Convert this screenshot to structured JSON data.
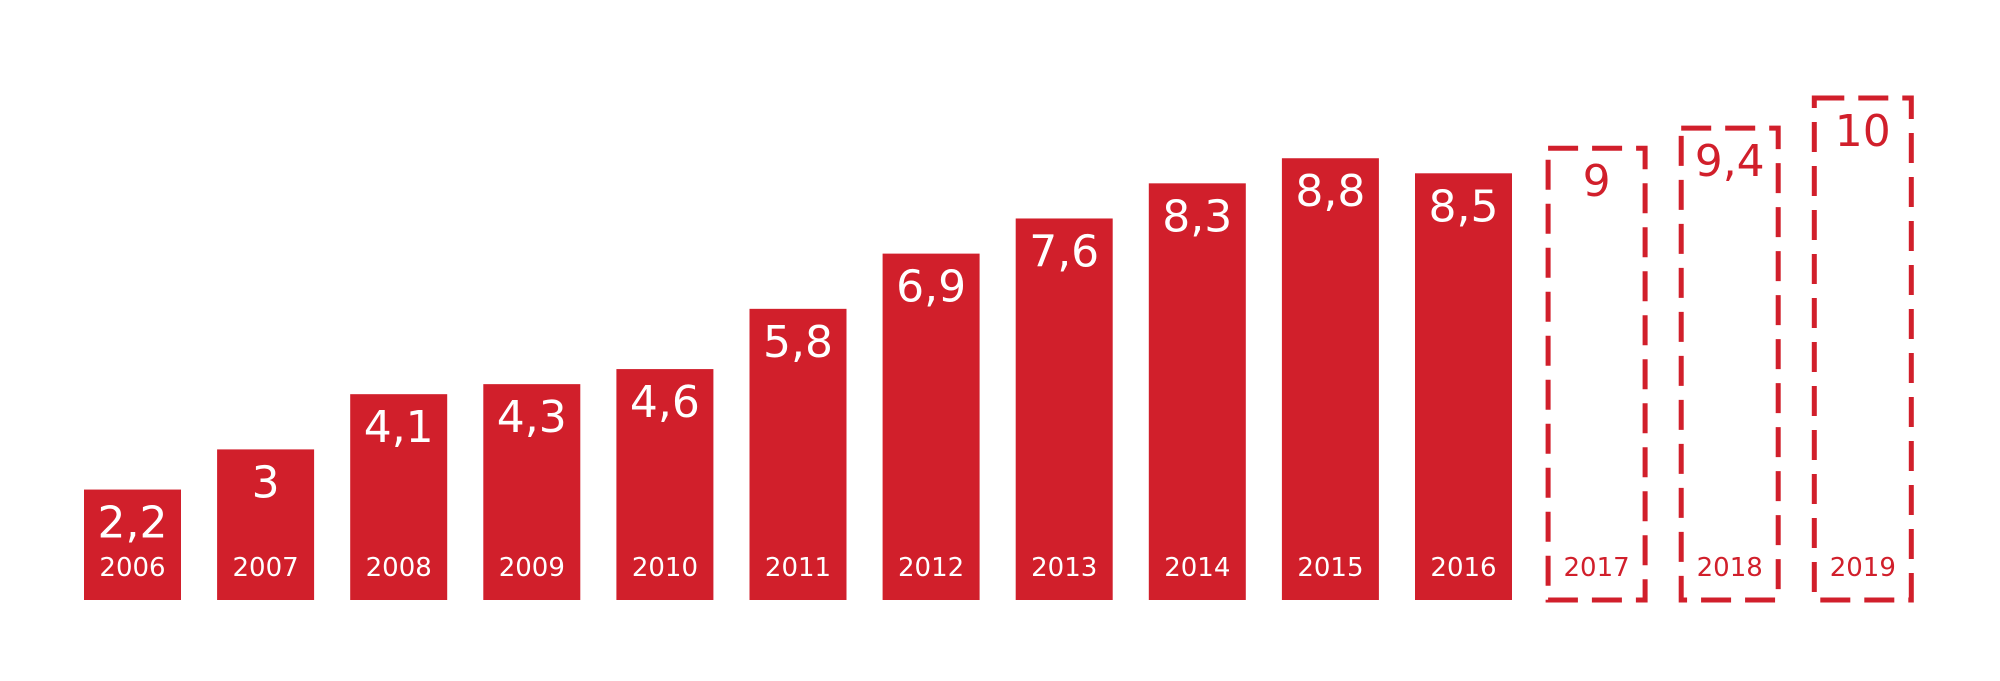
{
  "chart_data": {
    "type": "bar",
    "title": "",
    "xlabel": "",
    "ylabel": "",
    "grid": false,
    "legend": "none",
    "ylim": [
      0,
      10
    ],
    "colors": {
      "bar": "#d11f2b",
      "label_on_bar": "#ffffff"
    },
    "categories": [
      "2006",
      "2007",
      "2008",
      "2009",
      "2010",
      "2011",
      "2012",
      "2013",
      "2014",
      "2015",
      "2016",
      "2017",
      "2018",
      "2019"
    ],
    "values": [
      2.2,
      3,
      4.1,
      4.3,
      4.6,
      5.8,
      6.9,
      7.6,
      8.3,
      8.8,
      8.5,
      9,
      9.4,
      10
    ],
    "value_labels": [
      "2,2",
      "3",
      "4,1",
      "4,3",
      "4,6",
      "5,8",
      "6,9",
      "7,6",
      "8,3",
      "8,8",
      "8,5",
      "9",
      "9,4",
      "10"
    ],
    "bar_style": [
      "solid",
      "solid",
      "solid",
      "solid",
      "solid",
      "solid",
      "solid",
      "solid",
      "solid",
      "solid",
      "solid",
      "dashed",
      "dashed",
      "dashed"
    ]
  }
}
